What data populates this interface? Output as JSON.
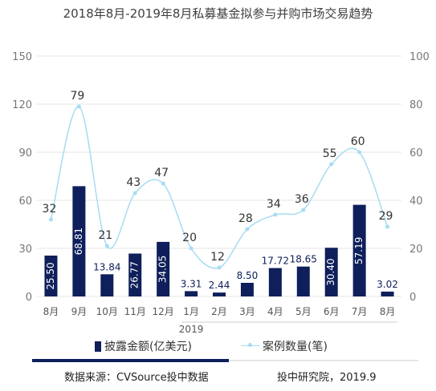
{
  "title": "2018年8月-2019年8月私募基金拟参与并购市场交易趋势",
  "chart_data": {
    "type": "bar",
    "categories": [
      "8月",
      "9月",
      "10月",
      "11月",
      "12月",
      "1月",
      "2月",
      "3月",
      "4月",
      "5月",
      "6月",
      "7月",
      "8月"
    ],
    "year_label": "2019",
    "y_left": {
      "ticks": [
        "0",
        "30",
        "60",
        "90",
        "120",
        "150"
      ],
      "range": [
        0,
        150
      ]
    },
    "y_right": {
      "ticks": [
        "0",
        "20",
        "40",
        "60",
        "80",
        "100"
      ],
      "range": [
        0,
        100
      ]
    },
    "grid": true,
    "bar_series": {
      "name": "披露金额(亿美元)",
      "color": "#0e1f5b",
      "axis": "left",
      "values": [
        25.5,
        68.81,
        13.84,
        26.77,
        34.05,
        3.31,
        2.44,
        8.5,
        17.72,
        18.65,
        30.4,
        57.19,
        3.02
      ],
      "labels": [
        "25.50",
        "68.81",
        "13.84",
        "26.77",
        "34.05",
        "3.31",
        "2.44",
        "8.50",
        "17.72",
        "18.65",
        "30.40",
        "57.19",
        "3.02"
      ]
    },
    "line_series": {
      "name": "案例数量(笔)",
      "color": "#a6dcf2",
      "axis": "right",
      "values": [
        32,
        79,
        21,
        43,
        47,
        20,
        12,
        28,
        34,
        36,
        55,
        60,
        29
      ],
      "labels": [
        "32",
        "79",
        "21",
        "43",
        "47",
        "20",
        "12",
        "28",
        "34",
        "36",
        "55",
        "60",
        "29"
      ]
    }
  },
  "legend": {
    "bar_label": "披露金额(亿美元)",
    "line_label": "案例数量(笔)"
  },
  "footer": {
    "source": "数据来源：CVSource投中数据",
    "institute": "投中研究院，2019.9"
  }
}
